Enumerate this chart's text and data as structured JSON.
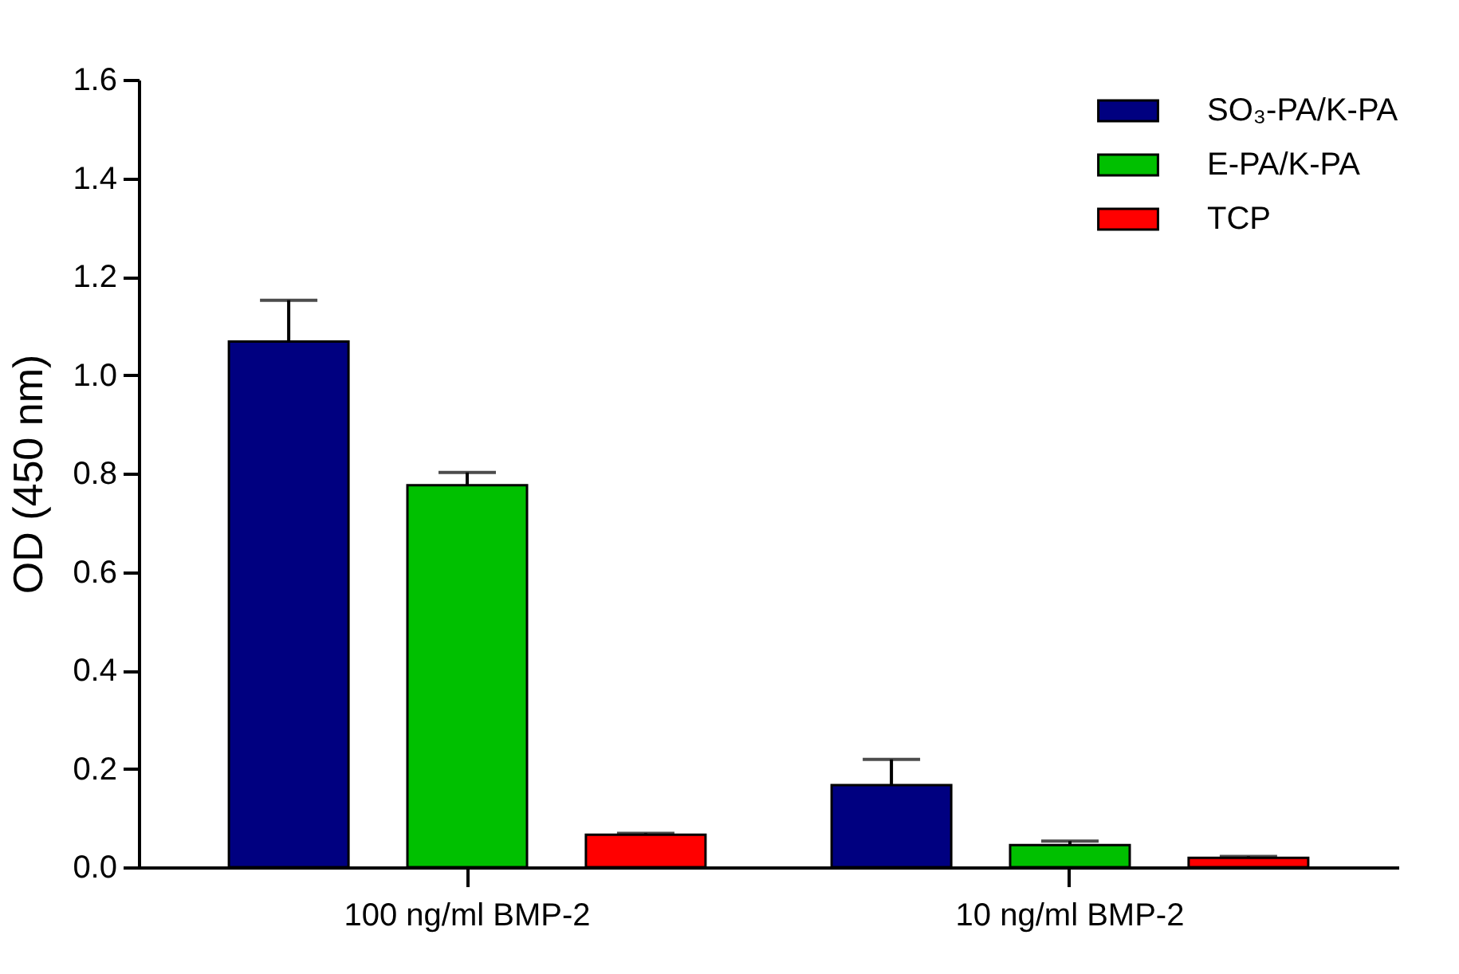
{
  "chart_data": {
    "type": "bar",
    "ylabel": "OD (450 nm)",
    "categories": [
      "100 ng/ml BMP-2",
      "10 ng/ml BMP-2"
    ],
    "series": [
      {
        "name": "SO₃-PA/K-PA",
        "color": "#000080",
        "values": [
          1.068,
          0.167
        ],
        "errors": [
          [
            1.068,
            1.152
          ],
          [
            0.167,
            0.219
          ]
        ]
      },
      {
        "name": "E-PA/K-PA",
        "color": "#00c000",
        "values": [
          0.776,
          0.045
        ],
        "errors": [
          [
            0.776,
            0.802
          ],
          [
            0.045,
            0.053
          ]
        ]
      },
      {
        "name": "TCP",
        "color": "#ff0000",
        "values": [
          0.066,
          0.019
        ],
        "errors": [
          [
            0.066,
            0.069
          ],
          [
            0.019,
            0.022
          ]
        ]
      }
    ],
    "ylim": [
      0,
      1.6
    ],
    "yticks": [
      {
        "value": 0,
        "label": "0.0"
      },
      0.2,
      0.4,
      0.6,
      0.8,
      {
        "value": 1,
        "label": "1.0"
      },
      1.2,
      1.4,
      1.6
    ],
    "grid": false,
    "legend": "top right"
  }
}
